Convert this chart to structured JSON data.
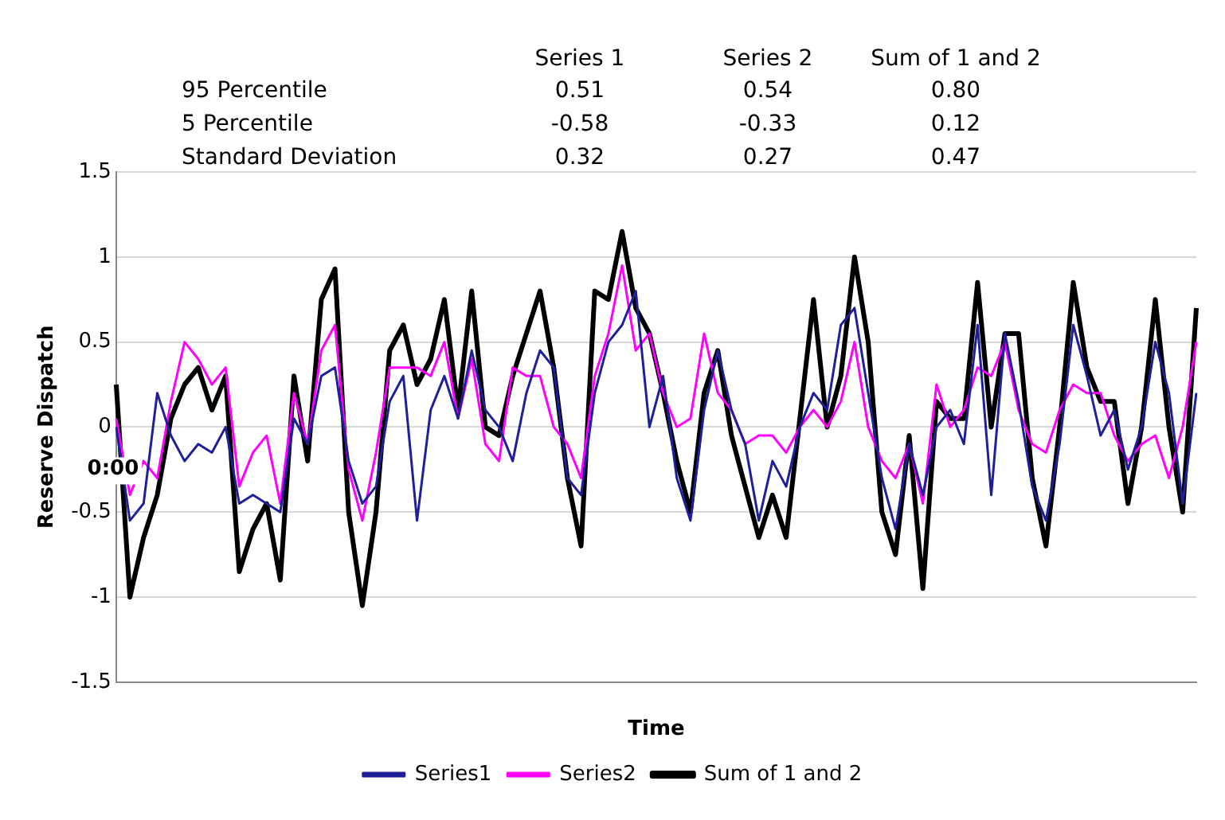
{
  "chart_data": {
    "type": "line",
    "xlabel": "Time",
    "ylabel": "Reserve Dispatch",
    "categories": [
      "0:00",
      null,
      null,
      null,
      null,
      null,
      null,
      null,
      null,
      null,
      null,
      null,
      null,
      null,
      null,
      null,
      null,
      null,
      null,
      null,
      null,
      null,
      null,
      null,
      null,
      null,
      null,
      null,
      null,
      null,
      null,
      null,
      null,
      null,
      null,
      null,
      null,
      null,
      null,
      null,
      null,
      null,
      null,
      null,
      null,
      null,
      null,
      null,
      null,
      null,
      null,
      null,
      null,
      null,
      null,
      null,
      null,
      null,
      null,
      null,
      null,
      null,
      null,
      null,
      null,
      null,
      null,
      null,
      null,
      null,
      null,
      null,
      null,
      null,
      null,
      null,
      null,
      null,
      null,
      null
    ],
    "series": [
      {
        "name": "Series1",
        "color": "#1f1f99",
        "values": [
          0.0,
          -0.55,
          -0.45,
          0.2,
          -0.05,
          -0.2,
          -0.1,
          -0.15,
          0.0,
          -0.45,
          -0.4,
          -0.45,
          -0.5,
          0.05,
          -0.1,
          0.3,
          0.35,
          -0.2,
          -0.45,
          -0.35,
          0.15,
          0.3,
          -0.55,
          0.1,
          0.3,
          0.05,
          0.45,
          0.1,
          0.0,
          -0.2,
          0.2,
          0.45,
          0.35,
          -0.3,
          -0.4,
          0.2,
          0.5,
          0.6,
          0.8,
          0.0,
          0.3,
          -0.3,
          -0.55,
          0.1,
          0.45,
          0.1,
          -0.1,
          -0.55,
          -0.2,
          -0.35,
          0.0,
          0.2,
          0.1,
          0.6,
          0.7,
          0.2,
          -0.3,
          -0.6,
          -0.1,
          -0.4,
          0.0,
          0.1,
          -0.1,
          0.6,
          -0.4,
          0.55,
          0.15,
          -0.35,
          -0.55,
          -0.1,
          0.6,
          0.3,
          -0.05,
          0.1,
          -0.25,
          0.0,
          0.5,
          0.2,
          -0.45,
          0.2
        ]
      },
      {
        "name": "Series2",
        "color": "#ff00ff",
        "values": [
          0.05,
          -0.4,
          -0.2,
          -0.3,
          0.15,
          0.5,
          0.4,
          0.25,
          0.35,
          -0.35,
          -0.15,
          -0.05,
          -0.45,
          0.2,
          -0.1,
          0.45,
          0.6,
          -0.25,
          -0.55,
          -0.15,
          0.35,
          0.35,
          0.35,
          0.3,
          0.5,
          0.05,
          0.4,
          -0.1,
          -0.2,
          0.35,
          0.3,
          0.3,
          0.0,
          -0.1,
          -0.3,
          0.3,
          0.55,
          0.95,
          0.45,
          0.55,
          0.2,
          0.0,
          0.05,
          0.55,
          0.2,
          0.1,
          -0.1,
          -0.05,
          -0.05,
          -0.15,
          0.0,
          0.1,
          0.0,
          0.15,
          0.5,
          0.0,
          -0.2,
          -0.3,
          -0.1,
          -0.45,
          0.25,
          0.0,
          0.1,
          0.35,
          0.3,
          0.5,
          0.1,
          -0.1,
          -0.15,
          0.1,
          0.25,
          0.2,
          0.2,
          -0.05,
          -0.2,
          -0.1,
          -0.05,
          -0.3,
          0.0,
          0.5
        ]
      },
      {
        "name": "Sum of 1 and 2",
        "color": "#000000",
        "values": [
          0.25,
          -1.0,
          -0.65,
          -0.4,
          0.05,
          0.25,
          0.35,
          0.1,
          0.3,
          -0.85,
          -0.6,
          -0.45,
          -0.9,
          0.3,
          -0.2,
          0.75,
          0.93,
          -0.5,
          -1.05,
          -0.5,
          0.45,
          0.6,
          0.25,
          0.4,
          0.75,
          0.1,
          0.8,
          0.0,
          -0.05,
          0.3,
          0.55,
          0.8,
          0.35,
          -0.3,
          -0.7,
          0.8,
          0.75,
          1.15,
          0.7,
          0.55,
          0.2,
          -0.2,
          -0.5,
          0.2,
          0.45,
          -0.05,
          -0.35,
          -0.65,
          -0.4,
          -0.65,
          0.05,
          0.75,
          0.0,
          0.3,
          1.0,
          0.5,
          -0.5,
          -0.75,
          -0.05,
          -0.95,
          0.15,
          0.05,
          0.05,
          0.85,
          0.0,
          0.55,
          0.55,
          -0.3,
          -0.7,
          0.0,
          0.85,
          0.35,
          0.15,
          0.15,
          -0.45,
          0.0,
          0.75,
          0.0,
          -0.5,
          0.7
        ]
      }
    ],
    "ylim": [
      -1.5,
      1.5
    ],
    "yticks": [
      -1.5,
      -1,
      -0.5,
      0,
      0.5,
      1,
      1.5
    ],
    "grid": "y",
    "legend": "bottom",
    "marker": "none",
    "line_style": "solid",
    "annotations": [
      "Series 1",
      "Series 2",
      "Sum of 1 and 2",
      "95 Percentile",
      "0.51",
      "0.54",
      "0.80",
      "5 Percentile",
      "-0.58",
      "-0.33",
      "0.12",
      "Standard Deviation",
      "0.32",
      "0.27",
      "0.47"
    ]
  }
}
